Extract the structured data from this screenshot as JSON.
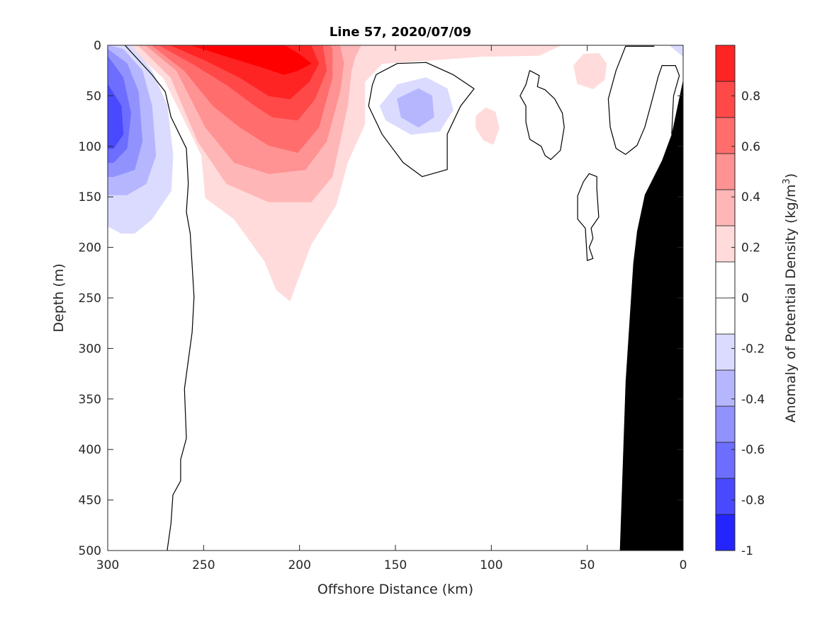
{
  "chart_data": {
    "type": "contourf",
    "title": "Line 57, 2020/07/09",
    "xlabel": "Offshore Distance (km)",
    "ylabel": "Depth (m)",
    "colorbar_label": "Anomaly of Potential Density (kg/m",
    "colorbar_label_sup": "3",
    "colorbar_label_end": ")",
    "xlim": [
      300,
      0
    ],
    "ylim": [
      0,
      500
    ],
    "x_reversed": true,
    "y_reversed": true,
    "xticks": [
      "300",
      "250",
      "200",
      "150",
      "100",
      "50",
      "0"
    ],
    "xtick_values": [
      300,
      250,
      200,
      150,
      100,
      50,
      0
    ],
    "yticks": [
      "0",
      "50",
      "100",
      "150",
      "200",
      "250",
      "300",
      "350",
      "400",
      "450",
      "500"
    ],
    "ytick_values": [
      0,
      50,
      100,
      150,
      200,
      250,
      300,
      350,
      400,
      450,
      500
    ],
    "clim": [
      -1,
      1
    ],
    "n_levels": 14,
    "cticks": [
      "0.8",
      "0.6",
      "0.4",
      "0.2",
      "0",
      "-0.2",
      "-0.4",
      "-0.6",
      "-0.8",
      "-1"
    ],
    "ctick_values": [
      0.8,
      0.6,
      0.4,
      0.2,
      0,
      -0.2,
      -0.4,
      -0.6,
      -0.8,
      -1
    ],
    "positive_color": "#ff0000",
    "negative_color": "#0000ff",
    "bathymetry_color": "#000000",
    "regions": [
      {
        "sign": 1,
        "level": 1,
        "points": [
          [
            290,
            0
          ],
          [
            271,
            32
          ],
          [
            260,
            74
          ],
          [
            251,
            109
          ],
          [
            249,
            151
          ],
          [
            234,
            172
          ],
          [
            218,
            214
          ],
          [
            212,
            242
          ],
          [
            205,
            253
          ],
          [
            201,
            232
          ],
          [
            194,
            197
          ],
          [
            181,
            158
          ],
          [
            175,
            116
          ],
          [
            166,
            78
          ],
          [
            166,
            36
          ],
          [
            157,
            18
          ],
          [
            134,
            15
          ],
          [
            105,
            11
          ],
          [
            75,
            10
          ],
          [
            64,
            0
          ]
        ]
      },
      {
        "sign": 1,
        "level": 2,
        "points": [
          [
            284,
            0
          ],
          [
            267,
            32
          ],
          [
            253,
            95
          ],
          [
            238,
            137
          ],
          [
            216,
            155
          ],
          [
            194,
            155
          ],
          [
            183,
            130
          ],
          [
            179,
            95
          ],
          [
            175,
            60
          ],
          [
            173,
            25
          ],
          [
            171,
            11
          ],
          [
            168,
            0
          ]
        ]
      },
      {
        "sign": 1,
        "level": 3,
        "points": [
          [
            280,
            0
          ],
          [
            264,
            25
          ],
          [
            249,
            81
          ],
          [
            234,
            116
          ],
          [
            216,
            127
          ],
          [
            197,
            123
          ],
          [
            186,
            95
          ],
          [
            179,
            46
          ],
          [
            177,
            18
          ],
          [
            179,
            0
          ]
        ]
      },
      {
        "sign": 1,
        "level": 4,
        "points": [
          [
            277,
            0
          ],
          [
            260,
            25
          ],
          [
            245,
            60
          ],
          [
            231,
            81
          ],
          [
            216,
            99
          ],
          [
            201,
            106
          ],
          [
            190,
            81
          ],
          [
            183,
            32
          ],
          [
            183,
            4
          ],
          [
            184,
            0
          ]
        ]
      },
      {
        "sign": 1,
        "level": 5,
        "points": [
          [
            273,
            0
          ],
          [
            256,
            18
          ],
          [
            238,
            39
          ],
          [
            223,
            60
          ],
          [
            214,
            71
          ],
          [
            201,
            74
          ],
          [
            192,
            53
          ],
          [
            186,
            25
          ],
          [
            188,
            0
          ]
        ]
      },
      {
        "sign": 1,
        "level": 6,
        "points": [
          [
            267,
            0
          ],
          [
            249,
            15
          ],
          [
            231,
            32
          ],
          [
            216,
            50
          ],
          [
            205,
            53
          ],
          [
            195,
            36
          ],
          [
            190,
            18
          ],
          [
            194,
            0
          ]
        ]
      },
      {
        "sign": 1,
        "level": 7,
        "points": [
          [
            256,
            0
          ],
          [
            238,
            11
          ],
          [
            219,
            22
          ],
          [
            208,
            29
          ],
          [
            201,
            25
          ],
          [
            194,
            18
          ],
          [
            201,
            8
          ],
          [
            208,
            0
          ]
        ]
      },
      {
        "sign": 1,
        "level": 1,
        "points": [
          [
            57,
            20
          ],
          [
            52,
            9
          ],
          [
            44,
            8
          ],
          [
            40,
            18
          ],
          [
            41,
            34
          ],
          [
            47,
            43
          ],
          [
            55,
            38
          ]
        ]
      },
      {
        "sign": 1,
        "level": 1,
        "points": [
          [
            108,
            70
          ],
          [
            103,
            62
          ],
          [
            98,
            66
          ],
          [
            96,
            82
          ],
          [
            99,
            98
          ],
          [
            104,
            94
          ],
          [
            108,
            82
          ]
        ]
      },
      {
        "sign": -1,
        "level": 1,
        "points": [
          [
            300,
            0
          ],
          [
            288,
            0
          ],
          [
            277,
            25
          ],
          [
            269,
            60
          ],
          [
            266,
            109
          ],
          [
            267,
            144
          ],
          [
            277,
            172
          ],
          [
            286,
            186
          ],
          [
            293,
            186
          ],
          [
            300,
            179
          ]
        ]
      },
      {
        "sign": -1,
        "level": 2,
        "points": [
          [
            300,
            0
          ],
          [
            292,
            4
          ],
          [
            282,
            25
          ],
          [
            277,
            60
          ],
          [
            275,
            109
          ],
          [
            280,
            137
          ],
          [
            290,
            148
          ],
          [
            300,
            148
          ]
        ]
      },
      {
        "sign": -1,
        "level": 3,
        "points": [
          [
            300,
            4
          ],
          [
            290,
            18
          ],
          [
            284,
            46
          ],
          [
            282,
            95
          ],
          [
            286,
            123
          ],
          [
            297,
            130
          ],
          [
            300,
            130
          ]
        ]
      },
      {
        "sign": -1,
        "level": 4,
        "points": [
          [
            300,
            11
          ],
          [
            292,
            32
          ],
          [
            288,
            67
          ],
          [
            290,
            102
          ],
          [
            297,
            116
          ],
          [
            300,
            116
          ]
        ]
      },
      {
        "sign": -1,
        "level": 5,
        "points": [
          [
            300,
            39
          ],
          [
            293,
            60
          ],
          [
            292,
            88
          ],
          [
            297,
            102
          ],
          [
            300,
            102
          ]
        ]
      },
      {
        "sign": -1,
        "level": 1,
        "points": [
          [
            158,
            60
          ],
          [
            149,
            39
          ],
          [
            134,
            32
          ],
          [
            123,
            43
          ],
          [
            120,
            64
          ],
          [
            127,
            85
          ],
          [
            142,
            88
          ],
          [
            155,
            74
          ]
        ]
      },
      {
        "sign": -1,
        "level": 2,
        "points": [
          [
            149,
            53
          ],
          [
            138,
            43
          ],
          [
            131,
            50
          ],
          [
            130,
            71
          ],
          [
            138,
            81
          ],
          [
            147,
            71
          ]
        ]
      },
      {
        "sign": -1,
        "level": 1,
        "points": [
          [
            7,
            0
          ],
          [
            0,
            0
          ],
          [
            0,
            11
          ]
        ]
      }
    ],
    "zero_contours": [
      {
        "closed": false,
        "points": [
          [
            291,
            0
          ],
          [
            277,
            29
          ],
          [
            270,
            46
          ],
          [
            267,
            71
          ],
          [
            259,
            102
          ],
          [
            258,
            137
          ],
          [
            259,
            165
          ],
          [
            257,
            186
          ],
          [
            255,
            249
          ],
          [
            256,
            284
          ],
          [
            258,
            312
          ],
          [
            260,
            340
          ],
          [
            259,
            389
          ],
          [
            262,
            410
          ],
          [
            262,
            431
          ],
          [
            266,
            445
          ],
          [
            267,
            473
          ],
          [
            269,
            500
          ]
        ]
      },
      {
        "closed": true,
        "points": [
          [
            160,
            29
          ],
          [
            149,
            18
          ],
          [
            134,
            17
          ],
          [
            120,
            29
          ],
          [
            109,
            43
          ],
          [
            116,
            60
          ],
          [
            123,
            88
          ],
          [
            123,
            123
          ],
          [
            136,
            130
          ],
          [
            146,
            116
          ],
          [
            157,
            88
          ],
          [
            164,
            60
          ],
          [
            162,
            39
          ]
        ]
      },
      {
        "closed": true,
        "points": [
          [
            80,
            25
          ],
          [
            75,
            30
          ],
          [
            76,
            41
          ],
          [
            72,
            44
          ],
          [
            67,
            53
          ],
          [
            63,
            67
          ],
          [
            62,
            81
          ],
          [
            64,
            104
          ],
          [
            69,
            113
          ],
          [
            72,
            109
          ],
          [
            74,
            100
          ],
          [
            80,
            93
          ],
          [
            82,
            76
          ],
          [
            82,
            60
          ],
          [
            85,
            50
          ],
          [
            82,
            39
          ]
        ]
      },
      {
        "closed": true,
        "points": [
          [
            49,
            127
          ],
          [
            45,
            130
          ],
          [
            45,
            142
          ],
          [
            44,
            170
          ],
          [
            48,
            181
          ],
          [
            47,
            191
          ],
          [
            49,
            200
          ],
          [
            47,
            211
          ],
          [
            50,
            213
          ],
          [
            51,
            181
          ],
          [
            55,
            172
          ],
          [
            55,
            149
          ],
          [
            52,
            135
          ]
        ]
      },
      {
        "closed": false,
        "points": [
          [
            15,
            1
          ],
          [
            30,
            1
          ],
          [
            35,
            25
          ],
          [
            39,
            53
          ],
          [
            38,
            81
          ],
          [
            35,
            102
          ],
          [
            30,
            108
          ],
          [
            24,
            99
          ],
          [
            20,
            81
          ],
          [
            16,
            53
          ],
          [
            13,
            31
          ],
          [
            11,
            20
          ],
          [
            4,
            20
          ],
          [
            2,
            30
          ],
          [
            5,
            50
          ],
          [
            6,
            88
          ]
        ]
      }
    ],
    "bathymetry": [
      [
        0,
        34
      ],
      [
        6,
        88
      ],
      [
        11,
        114
      ],
      [
        20,
        148
      ],
      [
        24,
        184
      ],
      [
        26,
        216
      ],
      [
        30,
        333
      ],
      [
        33,
        500
      ],
      [
        0,
        500
      ]
    ]
  }
}
